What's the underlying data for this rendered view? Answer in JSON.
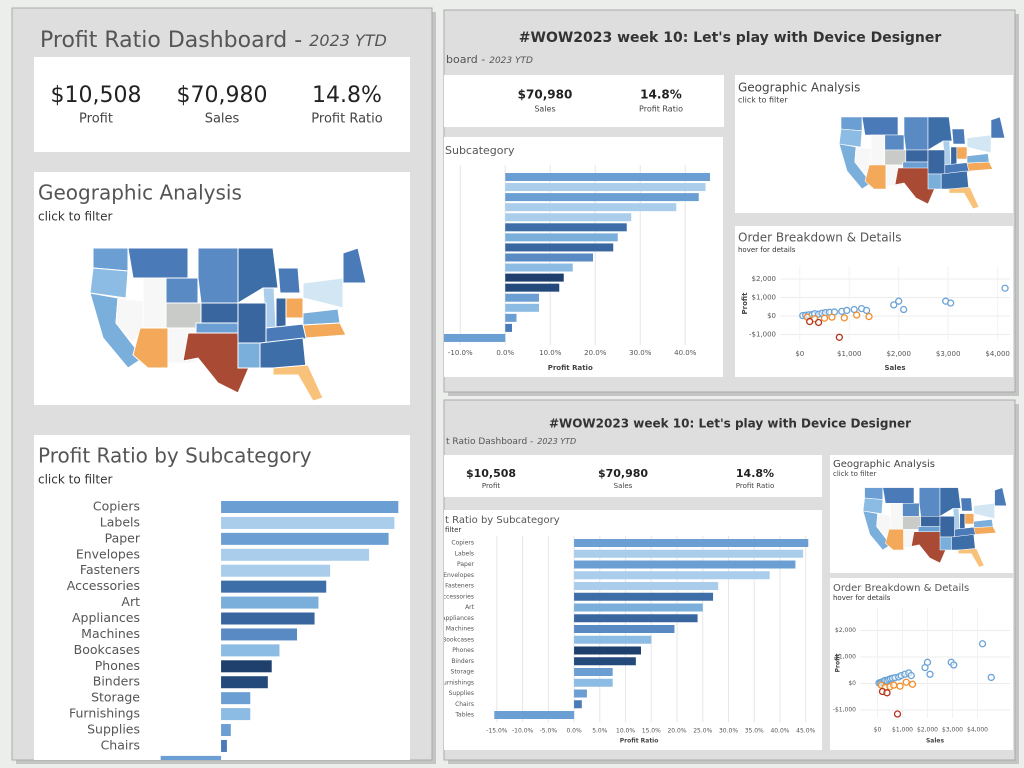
{
  "panels": [
    {
      "title": "Profit Ratio Dashboard -",
      "title_period": "2023 YTD",
      "kpis": [
        {
          "value": "$10,508",
          "label": "Profit"
        },
        {
          "value": "$70,980",
          "label": "Sales"
        },
        {
          "value": "14.8%",
          "label": "Profit Ratio"
        }
      ],
      "geo": {
        "title": "Geographic Analysis",
        "subtitle": "click to filter"
      }
    },
    {
      "header": "#WOW2023 week 10: Let's play with Device Designer",
      "title": "board -",
      "title_period": "2023 YTD",
      "kpis": [
        {
          "value": "$70,980",
          "label": "Sales"
        },
        {
          "value": "14.8%",
          "label": "Profit Ratio"
        }
      ],
      "geo": {
        "title": "Geographic Analysis",
        "subtitle": "click to filter"
      }
    },
    {
      "header": "#WOW2023 week 10: Let's play with Device Designer",
      "title": "t Ratio Dashboard -",
      "title_period": "2023 YTD",
      "kpis": [
        {
          "value": "$10,508",
          "label": "Profit"
        },
        {
          "value": "$70,980",
          "label": "Sales"
        },
        {
          "value": "14.8%",
          "label": "Profit Ratio"
        }
      ],
      "geo": {
        "title": "Geographic Analysis",
        "subtitle": "click to filter"
      }
    }
  ],
  "chart_data": [
    {
      "type": "bar",
      "orientation": "horizontal",
      "title": "Profit Ratio by Subcategory",
      "subtitle": "click to filter",
      "categories": [
        "Copiers",
        "Labels",
        "Paper",
        "Envelopes",
        "Fasteners",
        "Accessories",
        "Art",
        "Appliances",
        "Machines",
        "Bookcases",
        "Phones",
        "Binders",
        "Storage",
        "Furnishings",
        "Supplies",
        "Chairs",
        null
      ],
      "values": [
        45.5,
        44.5,
        43,
        38,
        28,
        27,
        25,
        24,
        19.5,
        15,
        13,
        12,
        7.5,
        7.5,
        2.5,
        1.5,
        -15.5
      ],
      "colors": [
        "#6b9fd3",
        "#a9cdea",
        "#6b9fd3",
        "#a9cdea",
        "#a9cdea",
        "#3e6ea8",
        "#7aaedb",
        "#3a66a0",
        "#5a8ac4",
        "#8cbce3",
        "#1f3f6d",
        "#24497b",
        "#6b9fd3",
        "#8cbce3",
        "#6b9fd3",
        "#4a7ab8",
        "#6b9fd3"
      ],
      "xlim": [
        -18.5,
        48.5
      ],
      "grid": false
    },
    {
      "type": "bar",
      "orientation": "horizontal",
      "title": "Subcategory",
      "categories": [
        null,
        null,
        null,
        null,
        null,
        null,
        null,
        null,
        null,
        null,
        null,
        null,
        null,
        null,
        null,
        null,
        null
      ],
      "values": [
        45.5,
        44.5,
        43,
        38,
        28,
        27,
        25,
        24,
        19.5,
        15,
        13,
        12,
        7.5,
        7.5,
        2.5,
        1.5,
        -15.5
      ],
      "colors": [
        "#6b9fd3",
        "#a9cdea",
        "#6b9fd3",
        "#a9cdea",
        "#a9cdea",
        "#3e6ea8",
        "#7aaedb",
        "#3a66a0",
        "#5a8ac4",
        "#8cbce3",
        "#1f3f6d",
        "#24497b",
        "#6b9fd3",
        "#8cbce3",
        "#6b9fd3",
        "#4a7ab8",
        "#6b9fd3"
      ],
      "xlim": [
        -12.5,
        47.5
      ],
      "xticks": [
        {
          "value": -10,
          "label": "-10.0%"
        },
        {
          "value": 0,
          "label": "0.0%"
        },
        {
          "value": 10,
          "label": "10.0%"
        },
        {
          "value": 20,
          "label": "20.0%"
        },
        {
          "value": 30,
          "label": "30.0%"
        },
        {
          "value": 40,
          "label": "40.0%"
        }
      ],
      "x_label": "Profit Ratio",
      "grid": true
    },
    {
      "type": "scatter",
      "title": "Order Breakdown & Details",
      "subtitle": "hover for details",
      "x_label": "Sales",
      "y_label": "Profit",
      "xlim": [
        -400,
        4250
      ],
      "ylim": [
        -1350,
        2700
      ],
      "xticks": [
        {
          "value": 0,
          "label": "$0"
        },
        {
          "value": 1000,
          "label": "$1,000"
        },
        {
          "value": 2000,
          "label": "$2,000"
        },
        {
          "value": 3000,
          "label": "$3,000"
        },
        {
          "value": 4000,
          "label": "$4,000"
        }
      ],
      "yticks": [
        {
          "value": 2000,
          "label": "$2,000"
        },
        {
          "value": 1000,
          "label": "$1,000"
        },
        {
          "value": 0,
          "label": "$0"
        },
        {
          "value": -1000,
          "label": "-$1,000"
        }
      ],
      "grid": true,
      "series": [
        {
          "color": "#6ba3d6",
          "x": [
            60,
            120,
            180,
            250,
            300,
            380,
            450,
            520,
            600,
            700,
            850,
            950,
            1100,
            1250,
            1350,
            1900,
            2000,
            2100,
            2950,
            3050,
            4150
          ],
          "values": [
            20,
            40,
            60,
            80,
            120,
            100,
            150,
            180,
            200,
            220,
            250,
            300,
            350,
            400,
            300,
            600,
            800,
            350,
            800,
            700,
            1500
          ]
        },
        {
          "color": "#f28e2b",
          "x": [
            150,
            300,
            500,
            650,
            900,
            1150,
            1400
          ],
          "values": [
            -60,
            -150,
            -120,
            -60,
            -100,
            50,
            -30
          ]
        },
        {
          "color": "#b5331c",
          "x": [
            200,
            380,
            800
          ],
          "values": [
            -300,
            -350,
            -1150
          ]
        }
      ]
    },
    {
      "type": "bar",
      "orientation": "horizontal",
      "title": "t Ratio by Subcategory",
      "subtitle": "filter",
      "categories": [
        "Copiers",
        "Labels",
        "Paper",
        "Envelopes",
        "Fasteners",
        "ccessories",
        "Art",
        "Appliances",
        "Machines",
        "Bookcases",
        "Phones",
        "Binders",
        "Storage",
        "urnishings",
        "Supplies",
        "Chairs",
        "Tables"
      ],
      "values": [
        45.5,
        44.5,
        43,
        38,
        28,
        27,
        25,
        24,
        19.5,
        15,
        13,
        12,
        7.5,
        7.5,
        2.5,
        1.5,
        -15.5
      ],
      "colors": [
        "#6b9fd3",
        "#a9cdea",
        "#6b9fd3",
        "#a9cdea",
        "#a9cdea",
        "#3e6ea8",
        "#7aaedb",
        "#3a66a0",
        "#5a8ac4",
        "#8cbce3",
        "#1f3f6d",
        "#24497b",
        "#6b9fd3",
        "#8cbce3",
        "#6b9fd3",
        "#4a7ab8",
        "#6b9fd3"
      ],
      "xlim": [
        -17.5,
        47
      ],
      "xticks": [
        {
          "value": -15,
          "label": "-15.0%"
        },
        {
          "value": -10,
          "label": "-10.0%"
        },
        {
          "value": -5,
          "label": "-5.0%"
        },
        {
          "value": 0,
          "label": "0.0%"
        },
        {
          "value": 5,
          "label": "5.0%"
        },
        {
          "value": 10,
          "label": "10.0%"
        },
        {
          "value": 15,
          "label": "15.0%"
        },
        {
          "value": 20,
          "label": "20.0%"
        },
        {
          "value": 25,
          "label": "25.0%"
        },
        {
          "value": 30,
          "label": "30.0%"
        },
        {
          "value": 35,
          "label": "35.0%"
        },
        {
          "value": 40,
          "label": "40.0%"
        },
        {
          "value": 45,
          "label": "45.0%"
        }
      ],
      "x_label": "Profit Ratio",
      "grid": true
    },
    {
      "type": "scatter",
      "title": "Order Breakdown & Details",
      "subtitle": "hover for details",
      "x_label": "Sales",
      "y_label": "Profit",
      "xlim": [
        -700,
        5300
      ],
      "ylim": [
        -1300,
        2850
      ],
      "xticks": [
        {
          "value": 0,
          "label": "$0"
        },
        {
          "value": 1000,
          "label": "$1,000"
        },
        {
          "value": 2000,
          "label": "$2,000"
        },
        {
          "value": 3000,
          "label": "$3,000"
        },
        {
          "value": 4000,
          "label": "$4,000"
        }
      ],
      "yticks": [
        {
          "value": 2000,
          "label": "$2,000"
        },
        {
          "value": 1000,
          "label": "$1,000"
        },
        {
          "value": 0,
          "label": "$0"
        },
        {
          "value": -1000,
          "label": "-$1,000"
        }
      ],
      "grid": true,
      "series": [
        {
          "color": "#6ba3d6",
          "x": [
            60,
            120,
            180,
            250,
            300,
            380,
            450,
            520,
            600,
            700,
            850,
            950,
            1100,
            1250,
            1350,
            1900,
            2000,
            2100,
            2950,
            3050,
            4200,
            4550
          ],
          "values": [
            20,
            40,
            60,
            80,
            120,
            100,
            150,
            180,
            200,
            220,
            250,
            300,
            350,
            400,
            300,
            600,
            800,
            350,
            800,
            700,
            1500,
            230
          ]
        },
        {
          "color": "#f28e2b",
          "x": [
            150,
            300,
            500,
            650,
            900,
            1150,
            1400
          ],
          "values": [
            -60,
            -150,
            -120,
            -60,
            -100,
            50,
            -30
          ]
        },
        {
          "color": "#b5331c",
          "x": [
            200,
            380,
            800
          ],
          "values": [
            -300,
            -350,
            -1150
          ]
        }
      ]
    }
  ]
}
